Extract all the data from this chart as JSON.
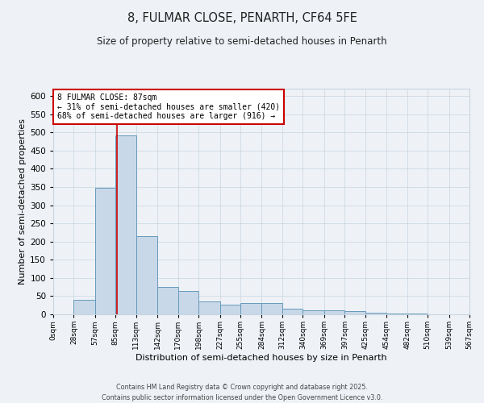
{
  "title": "8, FULMAR CLOSE, PENARTH, CF64 5FE",
  "subtitle": "Size of property relative to semi-detached houses in Penarth",
  "xlabel": "Distribution of semi-detached houses by size in Penarth",
  "ylabel": "Number of semi-detached properties",
  "bin_edges": [
    0,
    28,
    57,
    85,
    113,
    142,
    170,
    198,
    227,
    255,
    284,
    312,
    340,
    369,
    397,
    425,
    454,
    482,
    510,
    539,
    567
  ],
  "bar_heights": [
    0,
    40,
    348,
    492,
    215,
    76,
    65,
    35,
    27,
    32,
    32,
    16,
    10,
    10,
    8,
    4,
    3,
    2,
    1,
    1
  ],
  "bar_color": "#c8d8e8",
  "bar_edge_color": "#6699bb",
  "vline_x": 87,
  "vline_color": "#cc0000",
  "ylim": [
    0,
    620
  ],
  "yticks": [
    0,
    50,
    100,
    150,
    200,
    250,
    300,
    350,
    400,
    450,
    500,
    550,
    600
  ],
  "annotation_line1": "8 FULMAR CLOSE: 87sqm",
  "annotation_line2": "← 31% of semi-detached houses are smaller (420)",
  "annotation_line3": "68% of semi-detached houses are larger (916) →",
  "annotation_box_color": "#ffffff",
  "annotation_box_edge_color": "#cc0000",
  "footer_text": "Contains HM Land Registry data © Crown copyright and database right 2025.\nContains public sector information licensed under the Open Government Licence v3.0.",
  "background_color": "#eef2f7",
  "grid_color": "#c8d4e0",
  "tick_labels": [
    "0sqm",
    "28sqm",
    "57sqm",
    "85sqm",
    "113sqm",
    "142sqm",
    "170sqm",
    "198sqm",
    "227sqm",
    "255sqm",
    "284sqm",
    "312sqm",
    "340sqm",
    "369sqm",
    "397sqm",
    "425sqm",
    "454sqm",
    "482sqm",
    "510sqm",
    "539sqm",
    "567sqm"
  ]
}
